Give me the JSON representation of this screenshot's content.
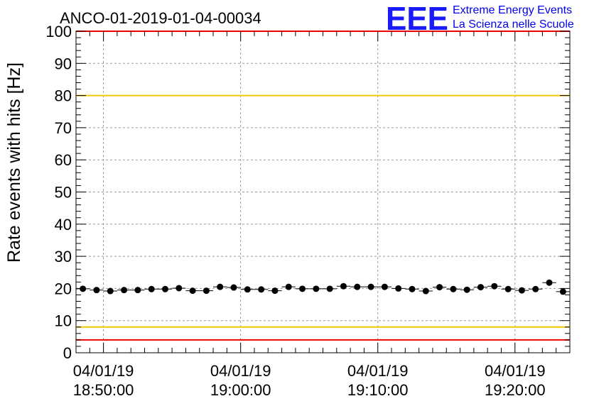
{
  "logo": {
    "mark": "EEE",
    "line1": "Extreme Energy Events",
    "line2": "La Scienza nelle Scuole",
    "color": "#0000ee"
  },
  "chart_data": {
    "type": "scatter",
    "title": "ANCO-01-2019-01-04-00034",
    "xlabel": "",
    "ylabel": "Rate events with hits [Hz]",
    "ylim": [
      0,
      100
    ],
    "yticks": [
      0,
      10,
      20,
      30,
      40,
      50,
      60,
      70,
      80,
      90,
      100
    ],
    "xlim": [
      "2019-01-04 18:48:00",
      "2019-01-04 19:24:00"
    ],
    "xticks": [
      {
        "date": "04/01/19",
        "time": "18:50:00"
      },
      {
        "date": "04/01/19",
        "time": "19:00:00"
      },
      {
        "date": "04/01/19",
        "time": "19:10:00"
      },
      {
        "date": "04/01/19",
        "time": "19:20:00"
      }
    ],
    "grid": true,
    "reference_lines": [
      {
        "y": 100,
        "color": "#ee0000"
      },
      {
        "y": 80,
        "color": "#f0c800"
      },
      {
        "y": 8,
        "color": "#f0c800"
      },
      {
        "y": 4,
        "color": "#ee0000"
      }
    ],
    "series": [
      {
        "marker_color": "#000000",
        "x": [
          "18:48:30",
          "18:49:30",
          "18:50:30",
          "18:51:30",
          "18:52:30",
          "18:53:30",
          "18:54:30",
          "18:55:30",
          "18:56:30",
          "18:57:30",
          "18:58:30",
          "18:59:30",
          "19:00:30",
          "19:01:30",
          "19:02:30",
          "19:03:30",
          "19:04:30",
          "19:05:30",
          "19:06:30",
          "19:07:30",
          "19:08:30",
          "19:09:30",
          "19:10:30",
          "19:11:30",
          "19:12:30",
          "19:13:30",
          "19:14:30",
          "19:15:30",
          "19:16:30",
          "19:17:30",
          "19:18:30",
          "19:19:30",
          "19:20:30",
          "19:21:30",
          "19:22:30",
          "19:23:30"
        ],
        "values": [
          19.9,
          19.5,
          19.2,
          19.5,
          19.5,
          19.8,
          19.8,
          20.1,
          19.3,
          19.3,
          20.5,
          20.3,
          19.7,
          19.7,
          19.3,
          20.5,
          19.9,
          19.9,
          19.9,
          20.7,
          20.5,
          20.5,
          20.5,
          20.0,
          19.8,
          19.2,
          20.4,
          19.8,
          19.6,
          20.4,
          20.7,
          19.8,
          19.4,
          19.8,
          21.8,
          19.0
        ],
        "errors": [
          0.45,
          0.45,
          0.45,
          0.45,
          0.45,
          0.45,
          0.45,
          0.45,
          0.45,
          0.45,
          0.45,
          0.45,
          0.45,
          0.45,
          0.45,
          0.45,
          0.45,
          0.45,
          0.45,
          0.45,
          0.45,
          0.45,
          0.45,
          0.45,
          0.45,
          0.45,
          0.45,
          0.45,
          0.45,
          0.45,
          0.45,
          0.45,
          0.45,
          0.45,
          0.45,
          0.45
        ]
      }
    ]
  }
}
